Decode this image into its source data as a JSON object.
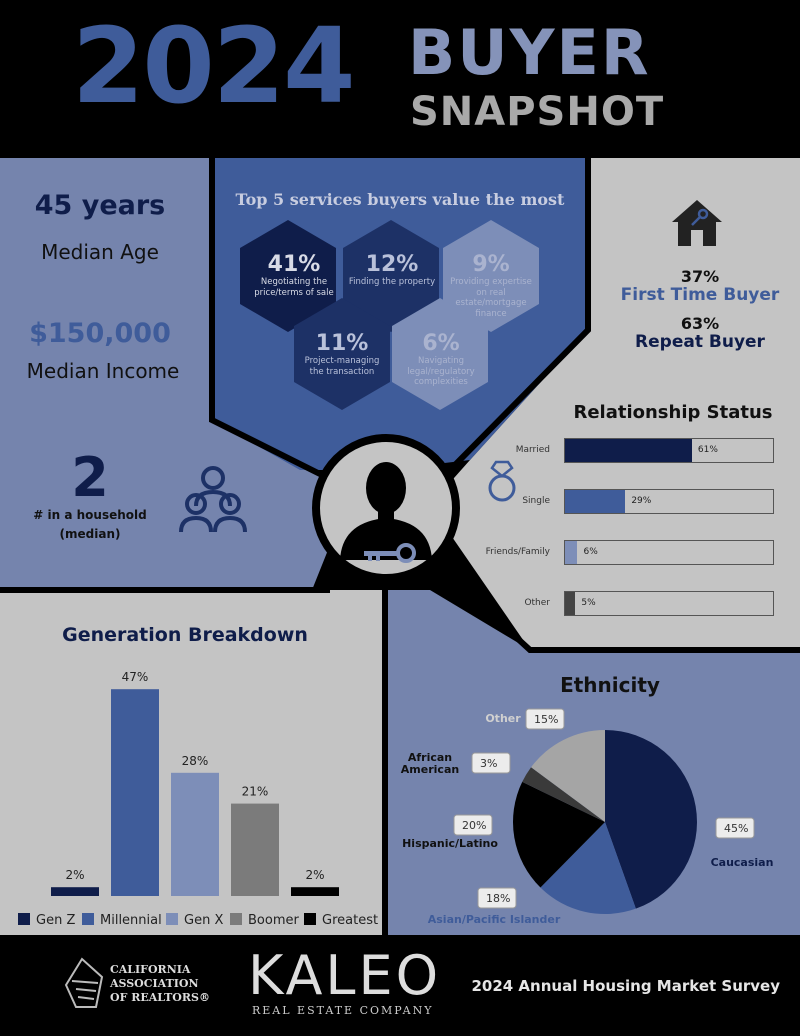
{
  "header": {
    "year": "2024",
    "title_line1": "BUYER",
    "title_line2": "SNAPSHOT"
  },
  "demographics": {
    "median_age_value": "45 years",
    "median_age_label": "Median Age",
    "median_income_value": "$150,000",
    "median_income_label": "Median Income",
    "household_value": "2",
    "household_label_line1": "# in a household",
    "household_label_line2": "(median)"
  },
  "services": {
    "title": "Top 5 services buyers value the most",
    "items": [
      {
        "pct": "41%",
        "label": "Negotiating the price/terms of sale"
      },
      {
        "pct": "12%",
        "label": "Finding the property"
      },
      {
        "pct": "9%",
        "label": "Providing expertise on real estate/mortgage finance"
      },
      {
        "pct": "11%",
        "label": "Project-managing the transaction"
      },
      {
        "pct": "6%",
        "label": "Navigating legal/regulatory complexities"
      }
    ]
  },
  "buyer_type": {
    "first_time_pct": "37%",
    "first_time_label": "First Time Buyer",
    "repeat_pct": "63%",
    "repeat_label": "Repeat Buyer"
  },
  "colors": {
    "navy": "#0f1d4a",
    "blue": "#3f5c9a",
    "light_blue": "#7d8eb8",
    "gray": "#7b7b7b",
    "black": "#000000",
    "panel_light": "#c4c4c4",
    "panel_blue": "#7584ad"
  },
  "footer": {
    "car_line1": "CALIFORNIA",
    "car_line2": "ASSOCIATION",
    "car_line3": "OF REALTORS®",
    "kaleo_big": "KALEO",
    "kaleo_small": "REAL ESTATE COMPANY",
    "survey": "2024 Annual Housing Market Survey"
  },
  "chart_data": [
    {
      "type": "bar",
      "orientation": "horizontal",
      "title": "Relationship Status",
      "categories": [
        "Married",
        "Single",
        "Friends/Family",
        "Other"
      ],
      "values": [
        61,
        29,
        6,
        5
      ],
      "value_labels": [
        "61%",
        "29%",
        "6%",
        "5%"
      ],
      "colors": [
        "#0f1d4a",
        "#3f5c9a",
        "#7d8eb8",
        "#444444"
      ],
      "xlim": [
        0,
        100
      ]
    },
    {
      "type": "bar",
      "title": "Generation Breakdown",
      "categories": [
        "Gen Z",
        "Millennial",
        "Gen X",
        "Boomer",
        "Greatest"
      ],
      "values": [
        2,
        47,
        28,
        21,
        2
      ],
      "value_labels": [
        "2%",
        "47%",
        "28%",
        "21%",
        "2%"
      ],
      "colors": [
        "#0f1d4a",
        "#3f5c9a",
        "#7d8eb8",
        "#7b7b7b",
        "#000000"
      ],
      "legend": "bottom",
      "ylim": [
        0,
        50
      ]
    },
    {
      "type": "pie",
      "title": "Ethnicity",
      "slices": [
        {
          "label": "Caucasian",
          "value": 45,
          "text": "45%",
          "color": "#0f1d4a"
        },
        {
          "label": "Asian/Pacific Islander",
          "value": 18,
          "text": "18%",
          "color": "#3f5c9a"
        },
        {
          "label": "Hispanic/Latino",
          "value": 20,
          "text": "20%",
          "color": "#000000"
        },
        {
          "label": "African American",
          "value": 3,
          "text": "3%",
          "color": "#3a3a3a"
        },
        {
          "label": "Other",
          "value": 15,
          "text": "15%",
          "color": "#a5a5a5"
        }
      ]
    }
  ]
}
